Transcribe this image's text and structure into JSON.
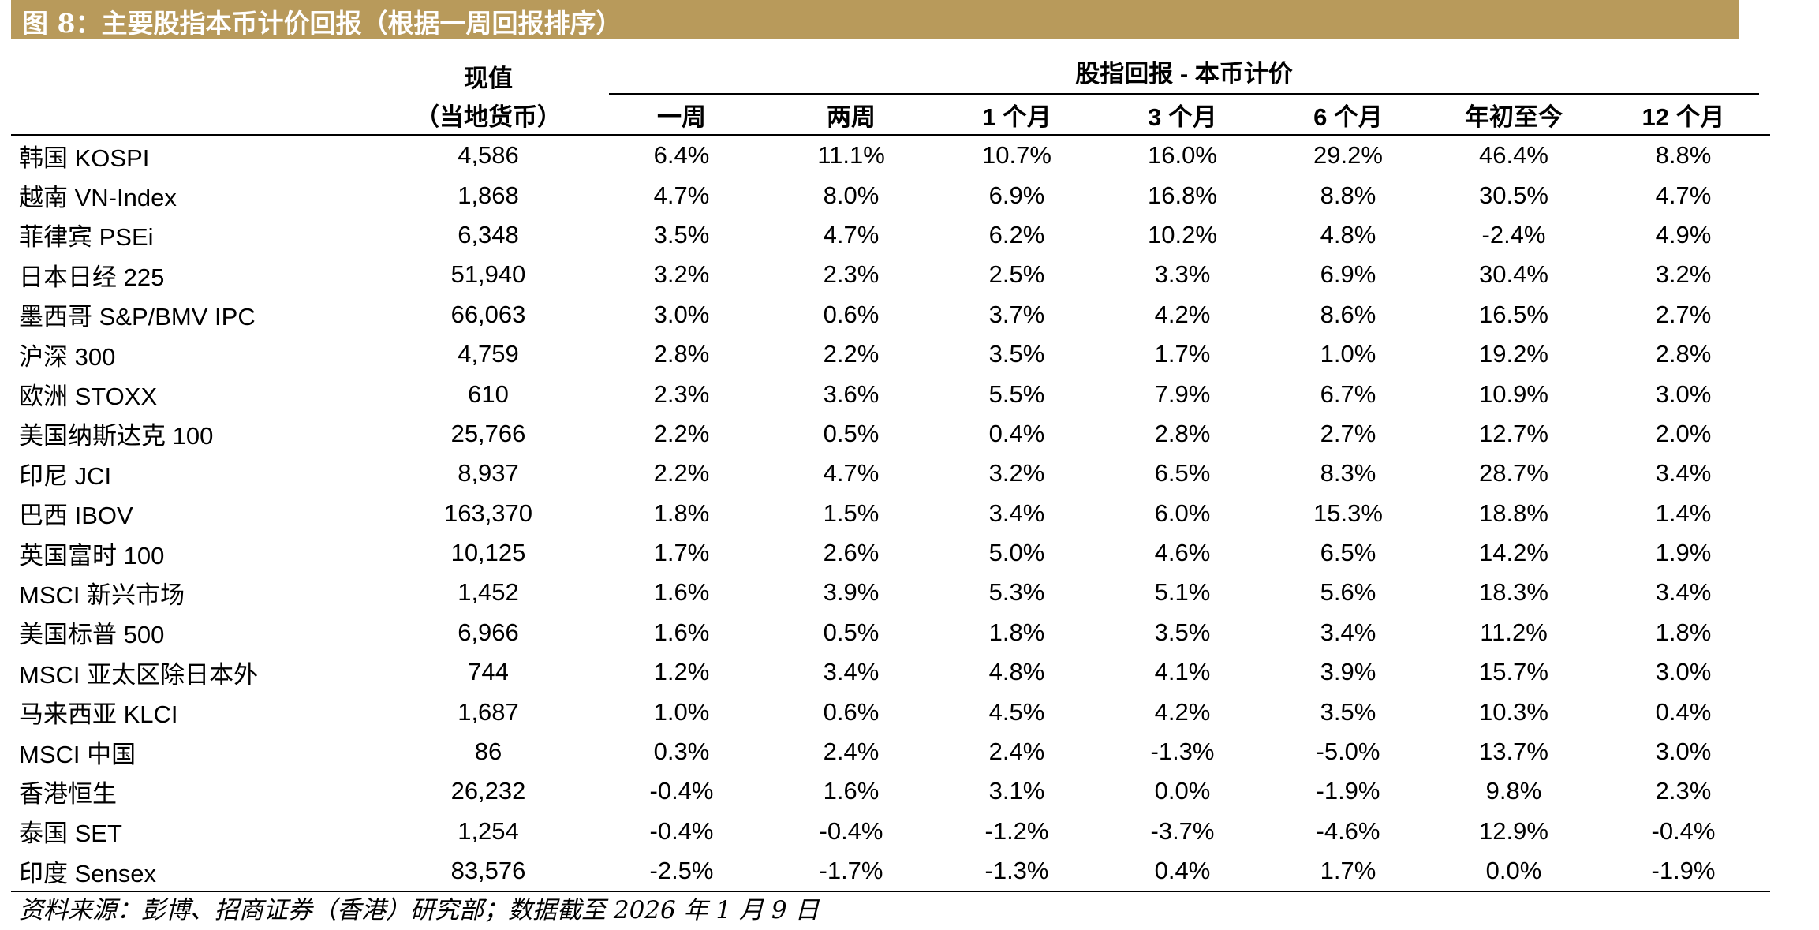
{
  "title": "图 8：主要股指本币计价回报（根据一周回报排序）",
  "header": {
    "value_line1": "现值",
    "value_line2": "（当地货币）",
    "group_title": "股指回报 - 本币计价",
    "periods": [
      "一周",
      "两周",
      "1 个月",
      "3 个月",
      "6 个月",
      "年初至今",
      "12 个月"
    ]
  },
  "rows": [
    {
      "name": "韩国 KOSPI",
      "value": "4,586",
      "returns": [
        "6.4%",
        "11.1%",
        "10.7%",
        "16.0%",
        "29.2%",
        "46.4%",
        "8.8%"
      ]
    },
    {
      "name": "越南 VN-Index",
      "value": "1,868",
      "returns": [
        "4.7%",
        "8.0%",
        "6.9%",
        "16.8%",
        "8.8%",
        "30.5%",
        "4.7%"
      ]
    },
    {
      "name": "菲律宾 PSEi",
      "value": "6,348",
      "returns": [
        "3.5%",
        "4.7%",
        "6.2%",
        "10.2%",
        "4.8%",
        "-2.4%",
        "4.9%"
      ]
    },
    {
      "name": "日本日经 225",
      "value": "51,940",
      "returns": [
        "3.2%",
        "2.3%",
        "2.5%",
        "3.3%",
        "6.9%",
        "30.4%",
        "3.2%"
      ]
    },
    {
      "name": "墨西哥 S&P/BMV IPC",
      "value": "66,063",
      "returns": [
        "3.0%",
        "0.6%",
        "3.7%",
        "4.2%",
        "8.6%",
        "16.5%",
        "2.7%"
      ]
    },
    {
      "name": "沪深 300",
      "value": "4,759",
      "returns": [
        "2.8%",
        "2.2%",
        "3.5%",
        "1.7%",
        "1.0%",
        "19.2%",
        "2.8%"
      ]
    },
    {
      "name": "欧洲 STOXX",
      "value": "610",
      "returns": [
        "2.3%",
        "3.6%",
        "5.5%",
        "7.9%",
        "6.7%",
        "10.9%",
        "3.0%"
      ]
    },
    {
      "name": "美国纳斯达克 100",
      "value": "25,766",
      "returns": [
        "2.2%",
        "0.5%",
        "0.4%",
        "2.8%",
        "2.7%",
        "12.7%",
        "2.0%"
      ]
    },
    {
      "name": "印尼 JCI",
      "value": "8,937",
      "returns": [
        "2.2%",
        "4.7%",
        "3.2%",
        "6.5%",
        "8.3%",
        "28.7%",
        "3.4%"
      ]
    },
    {
      "name": "巴西 IBOV",
      "value": "163,370",
      "returns": [
        "1.8%",
        "1.5%",
        "3.4%",
        "6.0%",
        "15.3%",
        "18.8%",
        "1.4%"
      ]
    },
    {
      "name": "英国富时 100",
      "value": "10,125",
      "returns": [
        "1.7%",
        "2.6%",
        "5.0%",
        "4.6%",
        "6.5%",
        "14.2%",
        "1.9%"
      ]
    },
    {
      "name": "MSCI 新兴市场",
      "value": "1,452",
      "returns": [
        "1.6%",
        "3.9%",
        "5.3%",
        "5.1%",
        "5.6%",
        "18.3%",
        "3.4%"
      ]
    },
    {
      "name": "美国标普 500",
      "value": "6,966",
      "returns": [
        "1.6%",
        "0.5%",
        "1.8%",
        "3.5%",
        "3.4%",
        "11.2%",
        "1.8%"
      ]
    },
    {
      "name": "MSCI 亚太区除日本外",
      "value": "744",
      "returns": [
        "1.2%",
        "3.4%",
        "4.8%",
        "4.1%",
        "3.9%",
        "15.7%",
        "3.0%"
      ]
    },
    {
      "name": "马来西亚 KLCI",
      "value": "1,687",
      "returns": [
        "1.0%",
        "0.6%",
        "4.5%",
        "4.2%",
        "3.5%",
        "10.3%",
        "0.4%"
      ]
    },
    {
      "name": "MSCI 中国",
      "value": "86",
      "returns": [
        "0.3%",
        "2.4%",
        "2.4%",
        "-1.3%",
        "-5.0%",
        "13.7%",
        "3.0%"
      ]
    },
    {
      "name": "香港恒生",
      "value": "26,232",
      "returns": [
        "-0.4%",
        "1.6%",
        "3.1%",
        "0.0%",
        "-1.9%",
        "9.8%",
        "2.3%"
      ]
    },
    {
      "name": "泰国 SET",
      "value": "1,254",
      "returns": [
        "-0.4%",
        "-0.4%",
        "-1.2%",
        "-3.7%",
        "-4.6%",
        "12.9%",
        "-0.4%"
      ]
    },
    {
      "name": "印度 Sensex",
      "value": "83,576",
      "returns": [
        "-2.5%",
        "-1.7%",
        "-1.3%",
        "0.4%",
        "1.7%",
        "0.0%",
        "-1.9%"
      ]
    }
  ],
  "source": "资料来源：彭博、招商证券（香港）研究部；数据截至 2026 年 1 月 9 日",
  "colors": {
    "title_bar": "#B89A5B",
    "title_text": "#FFFFFF",
    "text": "#000000"
  }
}
